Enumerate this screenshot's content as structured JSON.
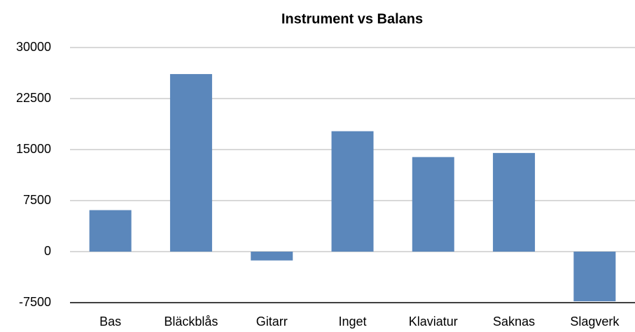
{
  "chart_data": {
    "type": "bar",
    "title": "Instrument vs Balans",
    "categories": [
      "Bas",
      "Bläckblås",
      "Gitarr",
      "Inget",
      "Klaviatur",
      "Saknas",
      "Slagverk"
    ],
    "values": [
      6100,
      26100,
      -1300,
      17700,
      13900,
      14500,
      -7300
    ],
    "color": "#5b87bb",
    "ylim": [
      -7500,
      30000
    ],
    "yticks": [
      -7500,
      0,
      7500,
      15000,
      22500,
      30000
    ],
    "grid": true
  }
}
